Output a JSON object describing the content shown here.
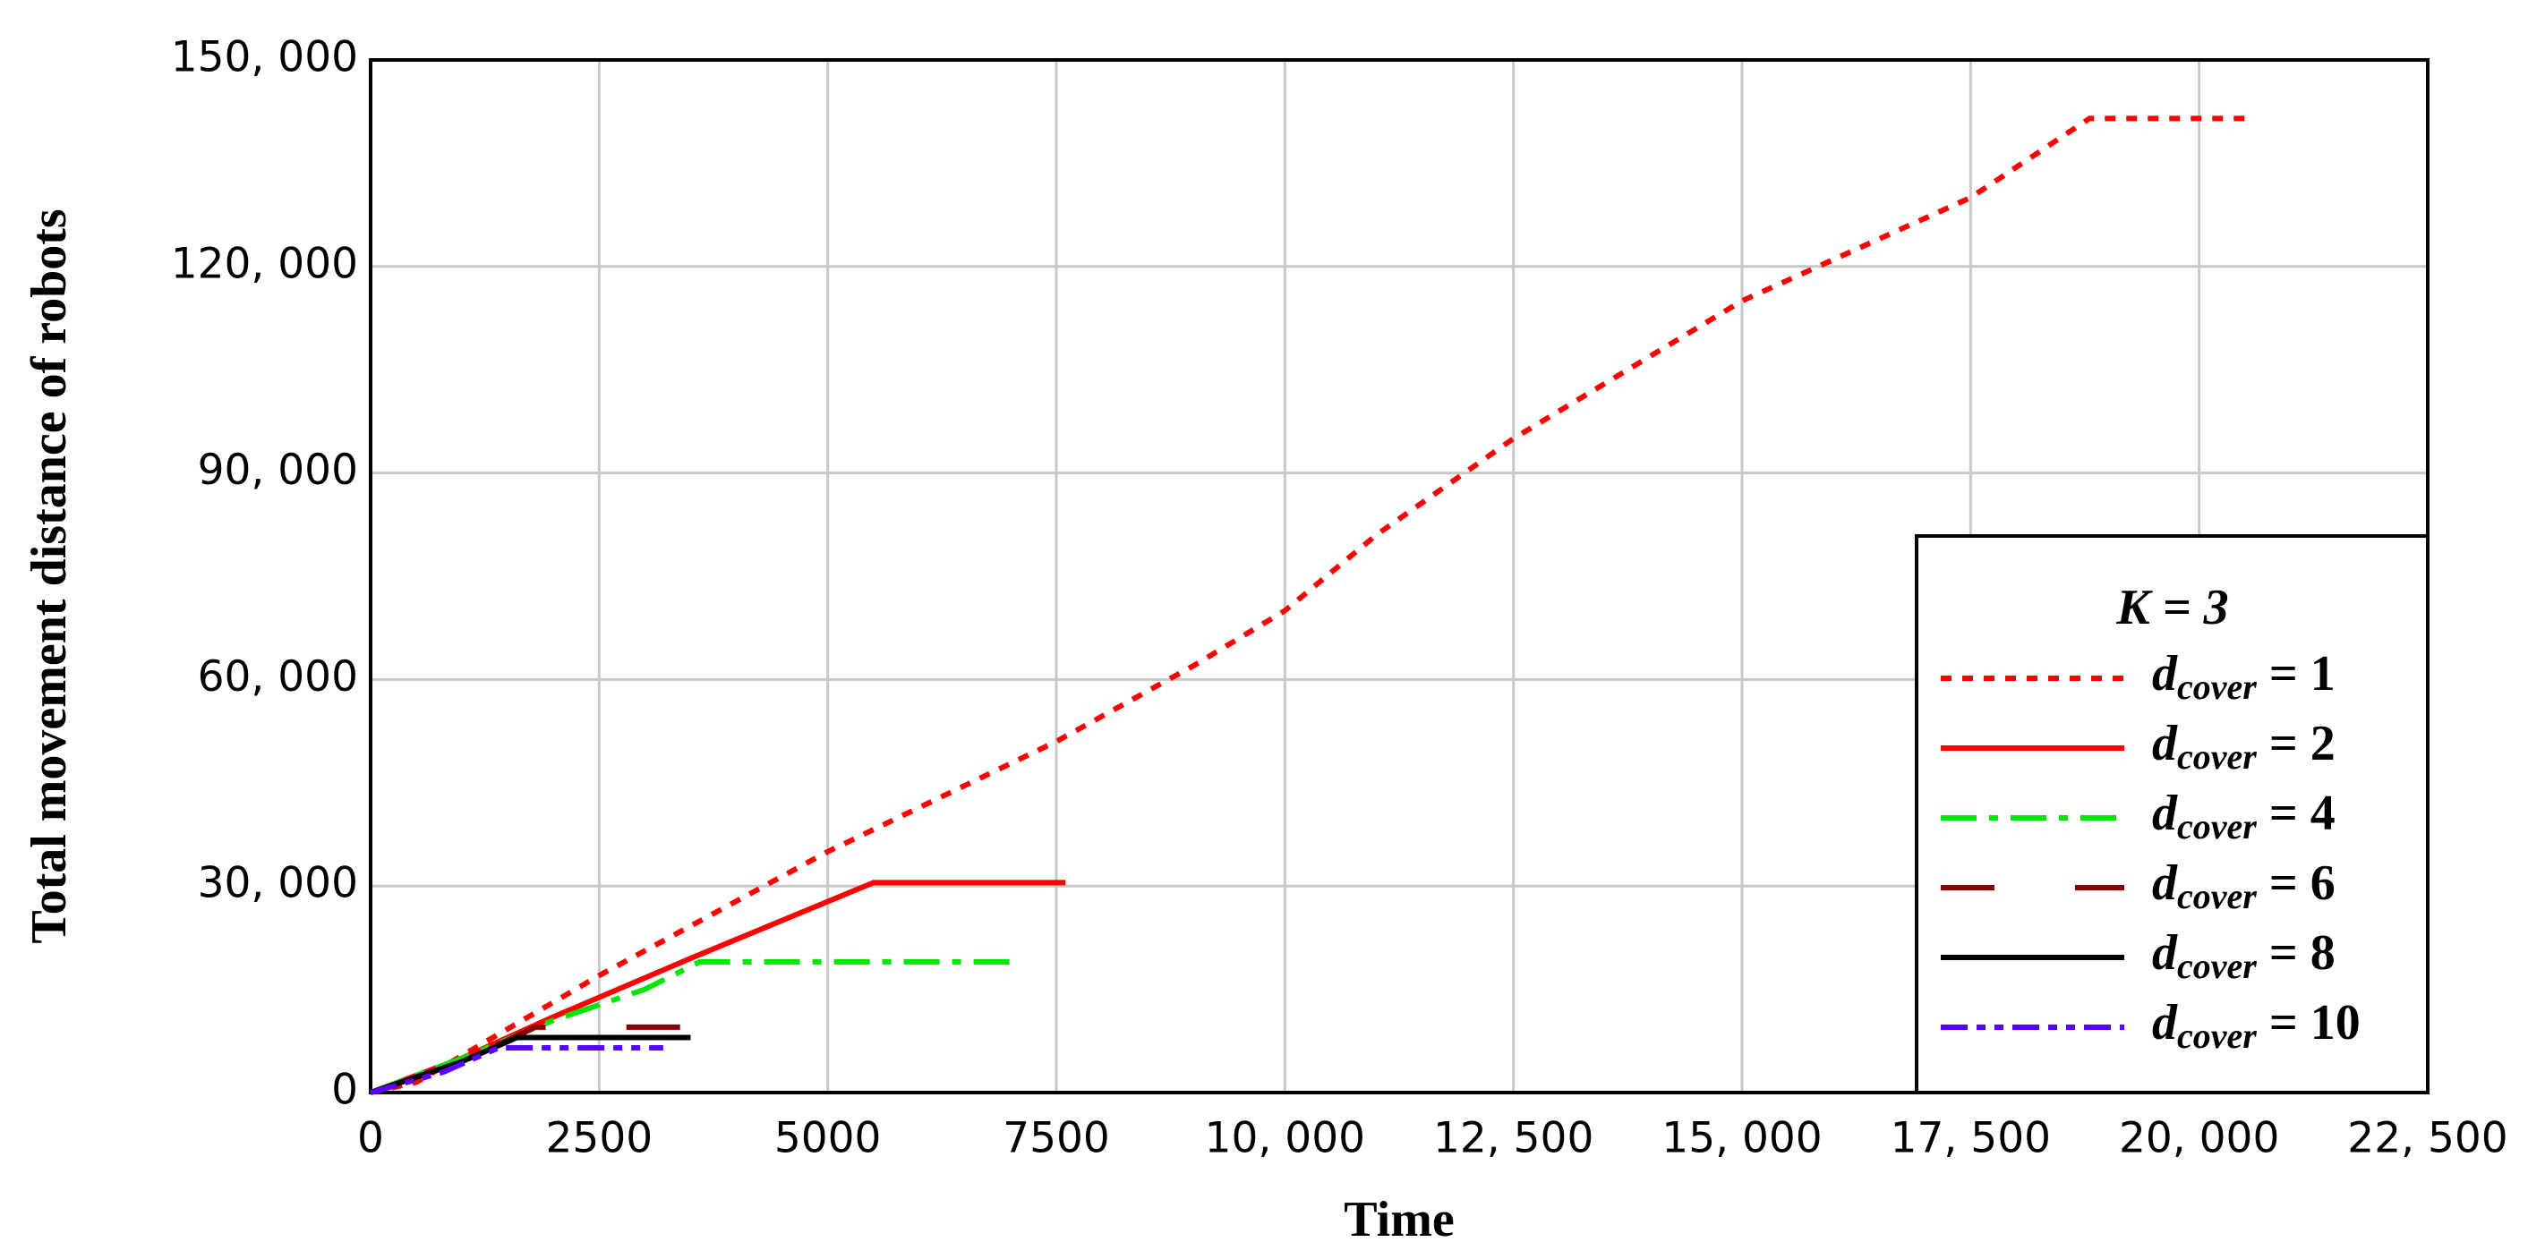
{
  "chart_data": {
    "type": "line",
    "x_label": "Time",
    "y_label": "Total movement distance of robots",
    "legend_title": "K = 3",
    "legend_position": "lower right",
    "grid": true,
    "xlim": [
      0,
      22500
    ],
    "xticks": [
      0,
      2500,
      5000,
      7500,
      {
        "value": 10000,
        "label": "10, 000"
      },
      {
        "value": 12500,
        "label": "12, 500"
      },
      {
        "value": 15000,
        "label": "15, 000"
      },
      {
        "value": 17500,
        "label": "17, 500"
      },
      {
        "value": 20000,
        "label": "20, 000"
      },
      {
        "value": 22500,
        "label": "22, 500"
      }
    ],
    "ylim": [
      0,
      150000
    ],
    "yticks": [
      0,
      {
        "value": 30000,
        "label": "30, 000"
      },
      {
        "value": 60000,
        "label": "60, 000"
      },
      {
        "value": 90000,
        "label": "90, 000"
      },
      {
        "value": 120000,
        "label": "120, 000"
      },
      {
        "value": 150000,
        "label": "150, 000"
      }
    ],
    "series": [
      {
        "name": "dcover = 1",
        "color": "#ff0000",
        "linestyle": "dotted",
        "x": [
          0,
          500,
          2500,
          5000,
          7500,
          9000,
          10000,
          11000,
          12500,
          15000,
          17500,
          18800,
          20500
        ],
        "values": [
          0,
          1500,
          17000,
          35000,
          51000,
          62000,
          70000,
          81000,
          95000,
          115000,
          130000,
          141500,
          141500
        ]
      },
      {
        "name": "dcover = 2",
        "color": "#ff0000",
        "linestyle": "solid",
        "x": [
          0,
          1000,
          2000,
          3500,
          4500,
          5500,
          7600
        ],
        "values": [
          0,
          5000,
          11000,
          19500,
          25000,
          30500,
          30500
        ]
      },
      {
        "name": "dcover = 4",
        "color": "#00e600",
        "linestyle": "dashdot",
        "x": [
          0,
          1000,
          2000,
          3000,
          3600,
          7000
        ],
        "values": [
          0,
          5000,
          10500,
          15000,
          19000,
          19000
        ]
      },
      {
        "name": "dcover = 6",
        "color": "#8b0000",
        "linestyle": "longdash",
        "x": [
          0,
          1000,
          1800,
          3900
        ],
        "values": [
          0,
          4500,
          9500,
          9500
        ]
      },
      {
        "name": "dcover = 8",
        "color": "#000000",
        "linestyle": "solid",
        "x": [
          0,
          1000,
          1600,
          3500
        ],
        "values": [
          0,
          4500,
          8000,
          8000
        ]
      },
      {
        "name": "dcover = 10",
        "color": "#5a00ff",
        "linestyle": "dashdotdot",
        "x": [
          0,
          800,
          1400,
          3200
        ],
        "values": [
          0,
          3000,
          6500,
          6500
        ]
      }
    ]
  }
}
